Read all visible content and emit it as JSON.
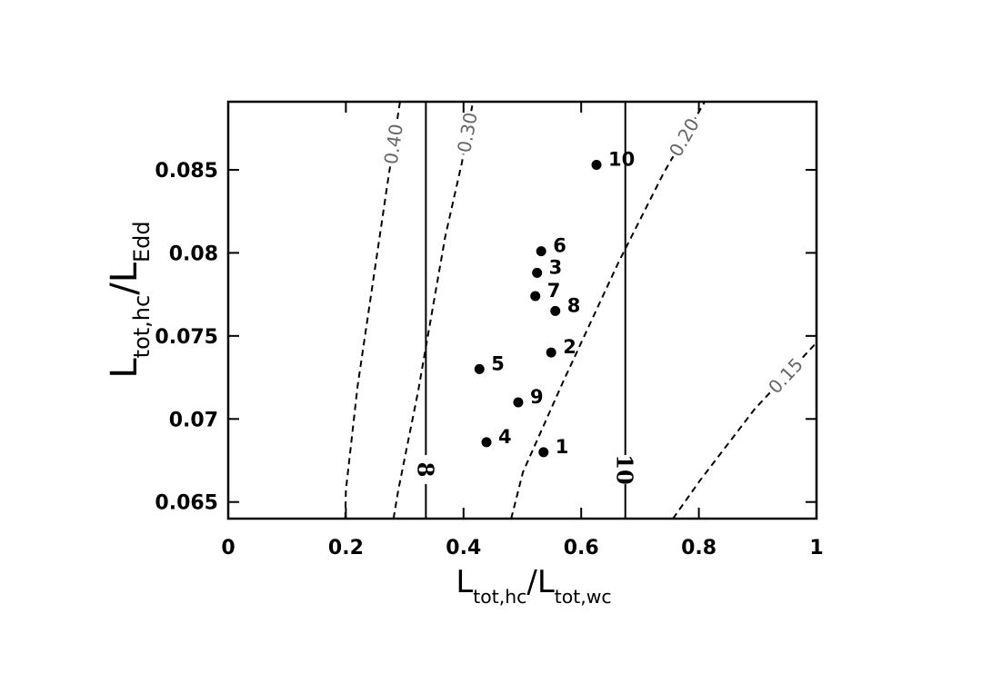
{
  "chart_data": {
    "type": "scatter",
    "x_label": [
      "L",
      "tot,hc",
      "/L",
      "tot,wc"
    ],
    "y_label": [
      "L",
      "tot,hc",
      "/L",
      "Edd"
    ],
    "xlim": [
      0,
      1
    ],
    "ylim": [
      0.064,
      0.0891
    ],
    "xticks": [
      0,
      0.2,
      0.4,
      0.6,
      0.8,
      1
    ],
    "yticks": [
      0.065,
      0.07,
      0.075,
      0.08,
      0.085
    ],
    "color": "#000000",
    "points": {
      "labels": [
        "1",
        "2",
        "3",
        "4",
        "5",
        "6",
        "7",
        "8",
        "9",
        "10"
      ],
      "x": [
        0.536,
        0.549,
        0.525,
        0.439,
        0.427,
        0.532,
        0.522,
        0.556,
        0.493,
        0.626
      ],
      "y": [
        0.068,
        0.074,
        0.0788,
        0.0686,
        0.073,
        0.0801,
        0.0774,
        0.0765,
        0.071,
        0.0853
      ]
    },
    "vlines": [
      {
        "x": 0.336,
        "label": "8"
      },
      {
        "x": 0.675,
        "label": "10"
      }
    ],
    "contours": [
      {
        "name": "0.40",
        "x": [
          0.199,
          0.2,
          0.22,
          0.245,
          0.27,
          0.292
        ],
        "y": [
          0.064,
          0.0657,
          0.072,
          0.078,
          0.084,
          0.0891
        ]
      },
      {
        "name": "0.30",
        "x": [
          0.281,
          0.289,
          0.323,
          0.369,
          0.397,
          0.416
        ],
        "y": [
          0.064,
          0.0657,
          0.0717,
          0.081,
          0.0854,
          0.0891
        ]
      },
      {
        "name": "0.20",
        "x": [
          0.481,
          0.501,
          0.57,
          0.663,
          0.74,
          0.81
        ],
        "y": [
          0.064,
          0.0668,
          0.0723,
          0.0794,
          0.0848,
          0.0891
        ]
      },
      {
        "name": "0.15",
        "x": [
          0.756,
          0.802,
          0.895,
          1.0
        ],
        "y": [
          0.064,
          0.0663,
          0.0706,
          0.0746
        ]
      }
    ]
  }
}
